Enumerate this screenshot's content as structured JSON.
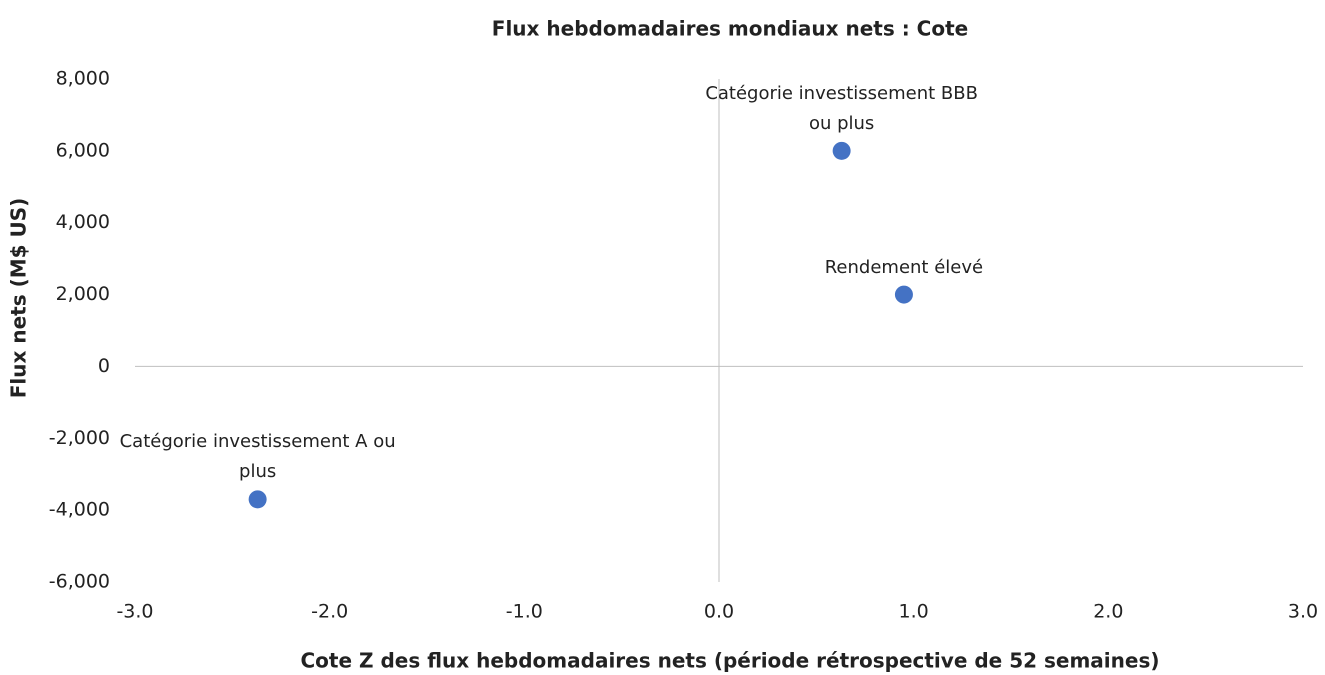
{
  "chart_data": {
    "type": "scatter",
    "title": "Flux hebdomadaires mondiaux nets : Cote",
    "x_label": "Cote Z des flux hebdomadaires nets (période rétrospective de 52 semaines)",
    "y_label": "Flux nets (M$ US)",
    "color": "#4472c4",
    "grid": false,
    "series": [
      {
        "x": [
          0.63,
          0.95,
          -2.37
        ],
        "values": [
          6000,
          2000,
          -3700
        ],
        "labels": [
          "Catégorie investissement BBB ou plus",
          "Rendement élevé",
          "Catégorie investissement A ou plus"
        ]
      }
    ],
    "xlim": [
      -3,
      3
    ],
    "xticks": [
      {
        "value": -3,
        "label": "-3.0"
      },
      {
        "value": -2,
        "label": "-2.0"
      },
      {
        "value": -1,
        "label": "-1.0"
      },
      {
        "value": 0,
        "label": "0.0"
      },
      {
        "value": 1,
        "label": "1.0"
      },
      {
        "value": 2,
        "label": "2.0"
      },
      {
        "value": 3,
        "label": "3.0"
      }
    ],
    "ylim": [
      -6000,
      8000
    ],
    "yticks": [
      {
        "value": -6000,
        "label": "-6,000"
      },
      {
        "value": -4000,
        "label": "-4,000"
      },
      {
        "value": -2000,
        "label": "-2,000"
      },
      0,
      {
        "value": 2000,
        "label": "2,000"
      },
      {
        "value": 4000,
        "label": "4,000"
      },
      {
        "value": 6000,
        "label": "6,000"
      },
      {
        "value": 8000,
        "label": "8,000"
      }
    ]
  }
}
